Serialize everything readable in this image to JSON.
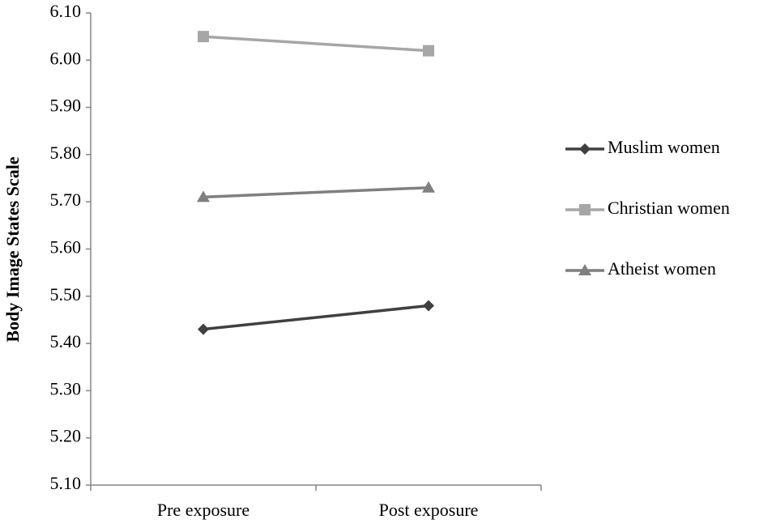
{
  "chart_data": {
    "type": "line",
    "y_label": "Body Image States Scale",
    "categories": [
      "Pre exposure",
      "Post exposure"
    ],
    "series": [
      {
        "name": "Muslim women",
        "color": "#404040",
        "marker": "diamond",
        "values": [
          5.43,
          5.48
        ]
      },
      {
        "name": "Christian women",
        "color": "#a6a6a6",
        "marker": "square",
        "values": [
          6.05,
          6.02
        ]
      },
      {
        "name": "Atheist women",
        "color": "#7f7f7f",
        "marker": "triangle",
        "values": [
          5.71,
          5.73
        ]
      }
    ],
    "ylim": [
      5.1,
      6.1
    ],
    "yticks": [
      {
        "value": 5.1,
        "label": "5.10"
      },
      {
        "value": 5.2,
        "label": "5.20"
      },
      {
        "value": 5.3,
        "label": "5.30"
      },
      {
        "value": 5.4,
        "label": "5.40"
      },
      {
        "value": 5.5,
        "label": "5.50"
      },
      {
        "value": 5.6,
        "label": "5.60"
      },
      {
        "value": 5.7,
        "label": "5.70"
      },
      {
        "value": 5.8,
        "label": "5.80"
      },
      {
        "value": 5.9,
        "label": "5.90"
      },
      {
        "value": 6.0,
        "label": "6.00"
      },
      {
        "value": 6.1,
        "label": "6.10"
      }
    ],
    "grid": false,
    "legend": "right"
  }
}
